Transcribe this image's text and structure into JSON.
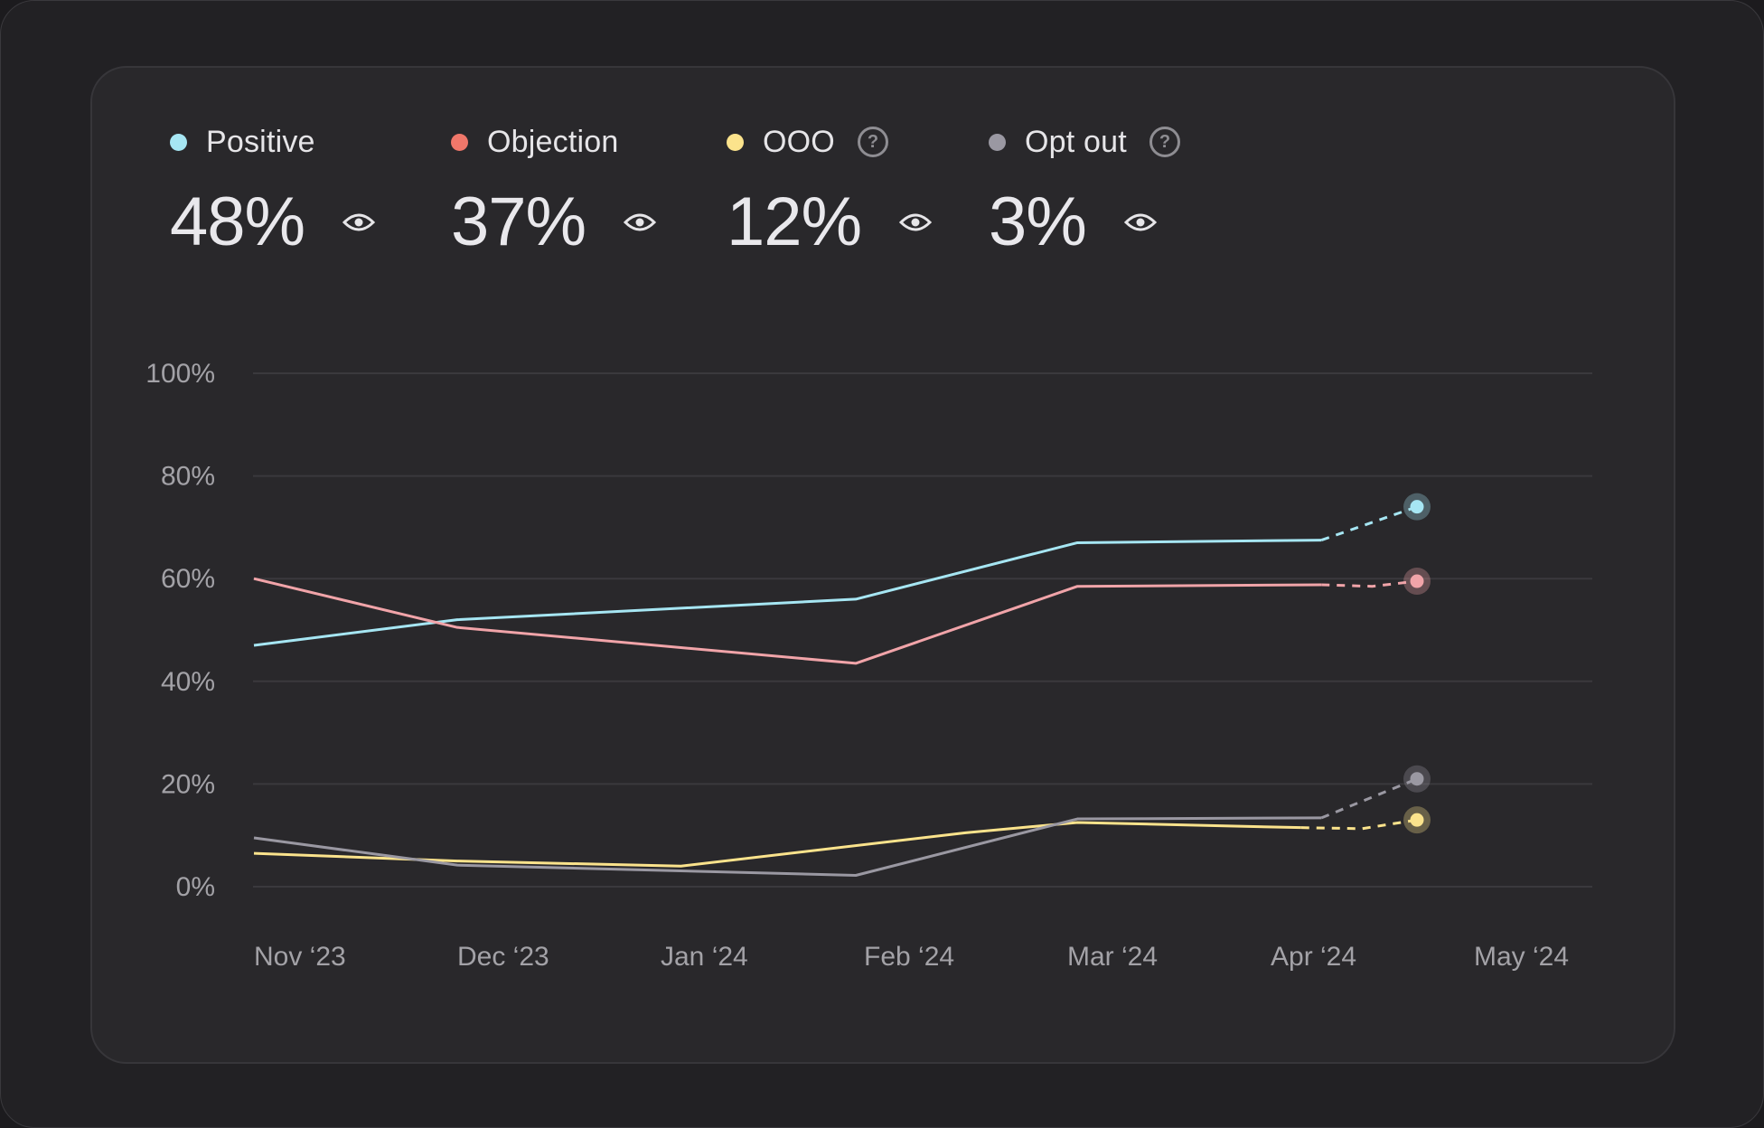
{
  "stats": [
    {
      "key": "positive",
      "label": "Positive",
      "value": "48%",
      "color": "#a6e6f3",
      "has_help": false
    },
    {
      "key": "objection",
      "label": "Objection",
      "value": "37%",
      "color": "#f0776a",
      "has_help": false
    },
    {
      "key": "ooo",
      "label": "OOO",
      "value": "12%",
      "color": "#fbe38c",
      "has_help": true
    },
    {
      "key": "opt_out",
      "label": "Opt out",
      "value": "3%",
      "color": "#9a98a2",
      "has_help": true
    }
  ],
  "icons": {
    "visibility": "eye-icon",
    "help": "help-circle-icon",
    "help_glyph": "?"
  },
  "chart_data": {
    "type": "line",
    "x": [
      "Nov ‘23",
      "Dec ‘23",
      "Jan ‘24",
      "Feb ‘24",
      "Mar ‘24",
      "Apr ‘24",
      "May ‘24"
    ],
    "y_ticks": [
      "0%",
      "20%",
      "40%",
      "60%",
      "80%",
      "100%"
    ],
    "ylim": [
      0,
      100
    ],
    "grid": true,
    "series": [
      {
        "name": "Positive",
        "color": "#a6e6f3",
        "values": [
          [
            0,
            47
          ],
          [
            1,
            52
          ],
          [
            2.96,
            56
          ],
          [
            4.05,
            67
          ],
          [
            5.25,
            67.5
          ]
        ],
        "forecast": [
          [
            5.25,
            67.5
          ],
          [
            5.72,
            74
          ]
        ]
      },
      {
        "name": "Objection",
        "color": "#f1a4a9",
        "values": [
          [
            0,
            60
          ],
          [
            1,
            50.5
          ],
          [
            2.96,
            43.5
          ],
          [
            4.05,
            58.5
          ],
          [
            5.25,
            58.8
          ]
        ],
        "forecast": [
          [
            5.25,
            58.8
          ],
          [
            5.5,
            58.5
          ],
          [
            5.72,
            59.5
          ]
        ]
      },
      {
        "name": "OOO",
        "color": "#fbe38c",
        "values": [
          [
            0,
            6.5
          ],
          [
            1,
            5
          ],
          [
            2.1,
            4
          ],
          [
            3.5,
            10.5
          ],
          [
            4.05,
            12.5
          ],
          [
            5.15,
            11.5
          ]
        ],
        "forecast": [
          [
            5.15,
            11.5
          ],
          [
            5.45,
            11.3
          ],
          [
            5.72,
            13
          ]
        ]
      },
      {
        "name": "Opt out",
        "color": "#9a98a2",
        "values": [
          [
            0,
            9.5
          ],
          [
            1,
            4.2
          ],
          [
            2.96,
            2.2
          ],
          [
            4.05,
            13.2
          ],
          [
            5.25,
            13.4
          ]
        ],
        "forecast": [
          [
            5.25,
            13.4
          ],
          [
            5.72,
            21
          ]
        ]
      }
    ]
  }
}
